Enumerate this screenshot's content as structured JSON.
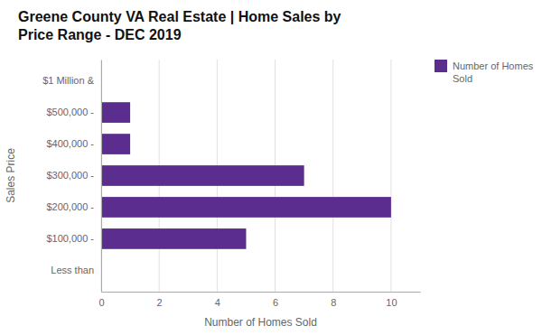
{
  "chart_data": {
    "type": "bar",
    "orientation": "horizontal",
    "title": "Greene County VA Real Estate | Home Sales by\nPrice Range - DEC 2019",
    "categories": [
      "Less than",
      "$100,000 -",
      "$200,000 -",
      "$300,000 -",
      "$400,000 -",
      "$500,000 -",
      "$1 Million &"
    ],
    "series": [
      {
        "name": "Number of Homes\nSold",
        "color": "#5b2d8e",
        "values": [
          0,
          5,
          10,
          7,
          1,
          1,
          0
        ]
      }
    ],
    "xlabel": "Number of Homes Sold",
    "ylabel": "Sales Price",
    "xlim": [
      0,
      11
    ],
    "xticks": [
      0,
      2,
      4,
      6,
      8,
      10
    ],
    "grid": true,
    "legend": "right"
  }
}
